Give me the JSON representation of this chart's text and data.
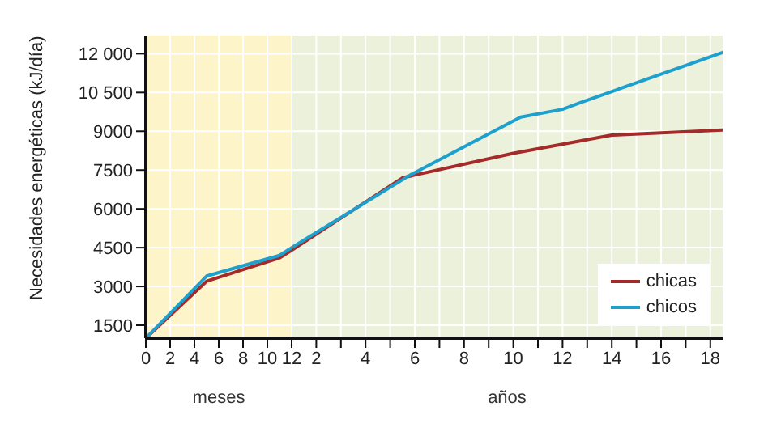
{
  "chart_data": [
    {
      "type": "line",
      "ylabel": "Necesidades energéticas (kJ/día)",
      "xlabel": "meses",
      "xlim": [
        0,
        12
      ],
      "ylim": [
        1000,
        12700
      ],
      "xticks": [
        0,
        2,
        4,
        6,
        8,
        10,
        12
      ],
      "yticks": [
        1500,
        3000,
        4500,
        6000,
        7500,
        9000,
        {
          "value": 10500,
          "label": "10 500"
        },
        {
          "value": 12000,
          "label": "12 000"
        }
      ],
      "series": [
        {
          "color": "#a52a2a",
          "x": [
            0,
            5,
            11,
            12
          ],
          "values": [
            1000,
            3200,
            4100,
            4400
          ]
        },
        {
          "color": "#1ea0cf",
          "x": [
            0,
            5,
            11,
            12
          ],
          "values": [
            1000,
            3400,
            4200,
            4500
          ]
        }
      ],
      "bands": [
        {
          "axis": "x",
          "from": 0,
          "to": 12,
          "color": "#fdf5c9"
        }
      ],
      "grid": true,
      "marker": "none",
      "line_style": "solid"
    },
    {
      "type": "line",
      "xlabel": "años",
      "xlim": [
        1,
        18.5
      ],
      "ylim": [
        1000,
        12700
      ],
      "xticks": [
        {
          "value": 1,
          "label": null
        },
        2,
        {
          "value": 3,
          "label": null
        },
        4,
        {
          "value": 5,
          "label": null
        },
        6,
        {
          "value": 7,
          "label": null
        },
        8,
        {
          "value": 9,
          "label": null
        },
        10,
        {
          "value": 11,
          "label": null
        },
        12,
        {
          "value": 13,
          "label": null
        },
        14,
        {
          "value": 15,
          "label": null
        },
        16,
        {
          "value": 17,
          "label": null
        },
        18
      ],
      "yticks": [
        1500,
        3000,
        4500,
        6000,
        7500,
        9000,
        10500,
        12000
      ],
      "tick_labels": "x",
      "series": [
        {
          "name": "chicas",
          "color": "#a52a2a",
          "x": [
            1,
            5.5,
            10,
            14,
            18.5
          ],
          "values": [
            4400,
            7200,
            8150,
            8850,
            9050
          ]
        },
        {
          "name": "chicos",
          "color": "#1ea0cf",
          "x": [
            1,
            5.8,
            10.3,
            12,
            12.7,
            18.5
          ],
          "values": [
            4500,
            7300,
            9550,
            9850,
            10100,
            12050
          ]
        }
      ],
      "bands": [
        {
          "axis": "x",
          "from": 1,
          "to": 18.5,
          "color": "#ebf1da"
        }
      ],
      "grid": true,
      "legend": "bottom right",
      "marker": "none",
      "line_style": "solid"
    }
  ]
}
